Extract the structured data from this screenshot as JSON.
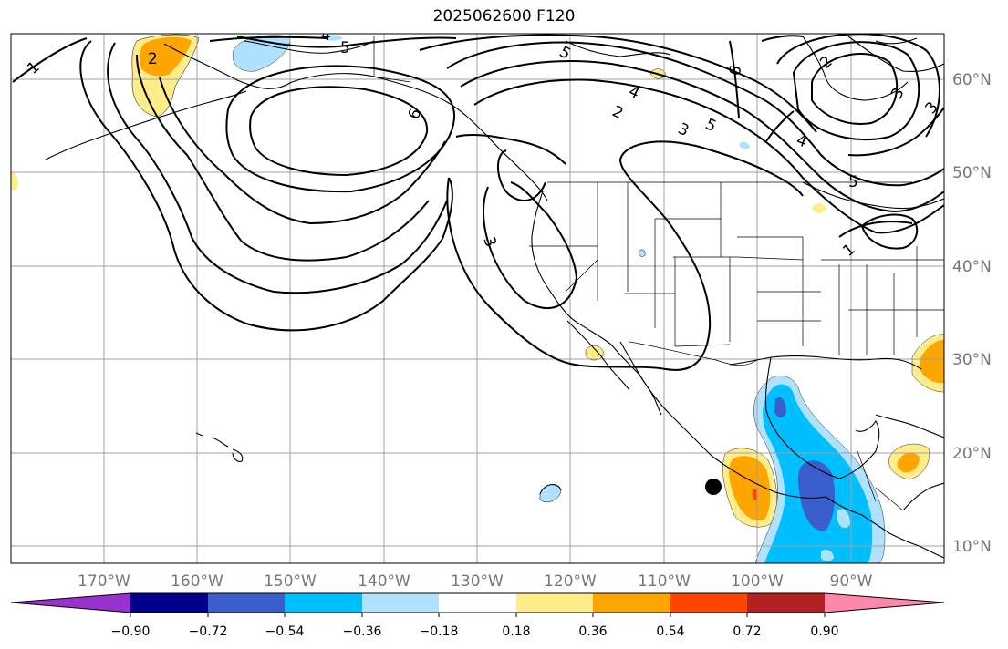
{
  "title": "2025062600 F120",
  "lat_labels": [
    "60°N",
    "50°N",
    "40°N",
    "30°N",
    "20°N",
    "10°N"
  ],
  "lon_labels": [
    "170°W",
    "160°W",
    "150°W",
    "140°W",
    "130°W",
    "120°W",
    "110°W",
    "100°W",
    "90°W"
  ],
  "colorbar": {
    "tick_labels": [
      "−0.90",
      "−0.72",
      "−0.54",
      "−0.36",
      "−0.18",
      "0.18",
      "0.36",
      "0.54",
      "0.72",
      "0.90"
    ],
    "colors": [
      "#9932cc",
      "#00008b",
      "#3a5fcd",
      "#00bfff",
      "#b0e2ff",
      "#ffffff",
      "#ffec8b",
      "#ffa500",
      "#ff4500",
      "#b22222",
      "#ff88aa"
    ]
  },
  "contour_labels": [
    "5",
    "4",
    "6",
    "1",
    "2",
    "3",
    "5",
    "4",
    "6",
    "2",
    "3",
    "5",
    "2",
    "3",
    "4",
    "5",
    "1",
    "3"
  ],
  "storm_marker": "filled-circle"
}
